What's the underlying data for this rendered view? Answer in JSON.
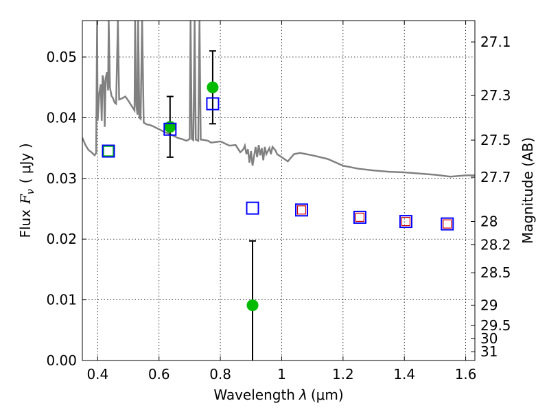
{
  "chart_data": {
    "type": "scatter",
    "xlabel_prefix": "Wavelength",
    "xlabel_symbol": "λ",
    "xlabel_unit": "(μm)",
    "ylabel_left_prefix": "Flux",
    "ylabel_left_symbol": "F",
    "ylabel_left_sub": "ν",
    "ylabel_left_unit": "( μJy )",
    "ylabel_right": "Magnitude (AB)",
    "xlim": [
      0.35,
      1.63
    ],
    "ylim": [
      0.0,
      0.056
    ],
    "x_ticks": [
      0.4,
      0.6,
      0.8,
      1.0,
      1.2,
      1.4,
      1.6
    ],
    "x_tick_labels": [
      "0.4",
      "0.6",
      "0.8",
      "1",
      "1.2",
      "1.4",
      "1.6"
    ],
    "y_ticks": [
      0.0,
      0.01,
      0.02,
      0.03,
      0.04,
      0.05
    ],
    "y_tick_labels": [
      "0.00",
      "0.01",
      "0.02",
      "0.03",
      "0.04",
      "0.05"
    ],
    "right_ticks": [
      {
        "mag": 27.1,
        "label": "27.1"
      },
      {
        "mag": 27.3,
        "label": "27.3"
      },
      {
        "mag": 27.5,
        "label": "27.5"
      },
      {
        "mag": 27.7,
        "label": "27.7"
      },
      {
        "mag": 28.0,
        "label": "28"
      },
      {
        "mag": 28.2,
        "label": "28.2"
      },
      {
        "mag": 28.5,
        "label": "28.5"
      },
      {
        "mag": 29.0,
        "label": "29"
      },
      {
        "mag": 29.5,
        "label": "29.5"
      },
      {
        "mag": 30.0,
        "label": "30"
      },
      {
        "mag": 31.0,
        "label": "31"
      }
    ],
    "grid": true,
    "colors": {
      "observed": "#00bb00",
      "model_box": "#0000ff",
      "model_inner": "#cc0000",
      "spectrum": "#808080",
      "errorbar": "#000000"
    },
    "series": [
      {
        "kind": "observed",
        "points": [
          {
            "x": 0.435,
            "y": 0.0345,
            "open": true
          },
          {
            "x": 0.636,
            "y": 0.0385,
            "yerr_low": 0.0335,
            "yerr_high": 0.0435
          },
          {
            "x": 0.775,
            "y": 0.045,
            "yerr_low": 0.039,
            "yerr_high": 0.051
          },
          {
            "x": 0.905,
            "y": 0.0091,
            "yerr_low": 0.0,
            "yerr_high": 0.0197
          }
        ]
      },
      {
        "kind": "model",
        "points": [
          {
            "x": 0.435,
            "y": 0.0345
          },
          {
            "x": 0.636,
            "y": 0.0381
          },
          {
            "x": 0.775,
            "y": 0.0423
          },
          {
            "x": 0.905,
            "y": 0.0251
          },
          {
            "x": 1.065,
            "y": 0.0248
          },
          {
            "x": 1.255,
            "y": 0.0236
          },
          {
            "x": 1.405,
            "y": 0.0229
          },
          {
            "x": 1.54,
            "y": 0.0225
          }
        ]
      },
      {
        "kind": "model_inner",
        "points": [
          {
            "x": 1.065,
            "y": 0.0248
          },
          {
            "x": 1.255,
            "y": 0.0236
          },
          {
            "x": 1.405,
            "y": 0.0229
          },
          {
            "x": 1.54,
            "y": 0.0225
          }
        ]
      },
      {
        "kind": "spectrum",
        "points": [
          [
            0.35,
            0.0367
          ],
          [
            0.36,
            0.0355
          ],
          [
            0.37,
            0.0347
          ],
          [
            0.38,
            0.0343
          ],
          [
            0.39,
            0.0338
          ],
          [
            0.395,
            0.0342
          ],
          [
            0.398,
            0.056
          ],
          [
            0.4,
            0.0395
          ],
          [
            0.405,
            0.044
          ],
          [
            0.41,
            0.0455
          ],
          [
            0.413,
            0.0395
          ],
          [
            0.416,
            0.047
          ],
          [
            0.42,
            0.046
          ],
          [
            0.423,
            0.0385
          ],
          [
            0.426,
            0.0465
          ],
          [
            0.43,
            0.0475
          ],
          [
            0.434,
            0.0445
          ],
          [
            0.436,
            0.056
          ],
          [
            0.44,
            0.045
          ],
          [
            0.445,
            0.0436
          ],
          [
            0.45,
            0.0432
          ],
          [
            0.455,
            0.0425
          ],
          [
            0.46,
            0.0423
          ],
          [
            0.466,
            0.056
          ],
          [
            0.47,
            0.043
          ],
          [
            0.48,
            0.0432
          ],
          [
            0.49,
            0.0435
          ],
          [
            0.5,
            0.0428
          ],
          [
            0.51,
            0.042
          ],
          [
            0.52,
            0.0412
          ],
          [
            0.522,
            0.056
          ],
          [
            0.526,
            0.042
          ],
          [
            0.53,
            0.0405
          ],
          [
            0.532,
            0.056
          ],
          [
            0.536,
            0.04
          ],
          [
            0.54,
            0.0398
          ],
          [
            0.545,
            0.056
          ],
          [
            0.55,
            0.0392
          ],
          [
            0.56,
            0.0389
          ],
          [
            0.57,
            0.0388
          ],
          [
            0.58,
            0.0386
          ],
          [
            0.6,
            0.0381
          ],
          [
            0.62,
            0.0376
          ],
          [
            0.64,
            0.0372
          ],
          [
            0.66,
            0.0367
          ],
          [
            0.68,
            0.0364
          ],
          [
            0.69,
            0.0362
          ],
          [
            0.7,
            0.0365
          ],
          [
            0.703,
            0.056
          ],
          [
            0.707,
            0.0365
          ],
          [
            0.712,
            0.0363
          ],
          [
            0.716,
            0.056
          ],
          [
            0.72,
            0.0364
          ],
          [
            0.728,
            0.0362
          ],
          [
            0.732,
            0.056
          ],
          [
            0.736,
            0.0364
          ],
          [
            0.75,
            0.0363
          ],
          [
            0.76,
            0.0362
          ],
          [
            0.77,
            0.0359
          ],
          [
            0.8,
            0.0361
          ],
          [
            0.83,
            0.0354
          ],
          [
            0.85,
            0.0355
          ],
          [
            0.865,
            0.0343
          ],
          [
            0.875,
            0.0348
          ],
          [
            0.88,
            0.0354
          ],
          [
            0.885,
            0.034
          ],
          [
            0.89,
            0.0348
          ],
          [
            0.895,
            0.0326
          ],
          [
            0.9,
            0.0345
          ],
          [
            0.905,
            0.0321
          ],
          [
            0.91,
            0.0337
          ],
          [
            0.915,
            0.0352
          ],
          [
            0.92,
            0.0335
          ],
          [
            0.925,
            0.0355
          ],
          [
            0.93,
            0.0338
          ],
          [
            0.935,
            0.035
          ],
          [
            0.94,
            0.033
          ],
          [
            0.945,
            0.0352
          ],
          [
            0.95,
            0.034
          ],
          [
            0.96,
            0.035
          ],
          [
            0.965,
            0.034
          ],
          [
            0.97,
            0.0352
          ],
          [
            0.98,
            0.0346
          ],
          [
            0.985,
            0.034
          ],
          [
            1.0,
            0.0335
          ],
          [
            1.02,
            0.0328
          ],
          [
            1.04,
            0.034
          ],
          [
            1.06,
            0.0342
          ],
          [
            1.08,
            0.034
          ],
          [
            1.1,
            0.0338
          ],
          [
            1.15,
            0.0332
          ],
          [
            1.2,
            0.0321
          ],
          [
            1.25,
            0.0316
          ],
          [
            1.3,
            0.0313
          ],
          [
            1.35,
            0.0311
          ],
          [
            1.4,
            0.031
          ],
          [
            1.45,
            0.0308
          ],
          [
            1.5,
            0.0306
          ],
          [
            1.55,
            0.0303
          ],
          [
            1.6,
            0.0305
          ],
          [
            1.63,
            0.0305
          ]
        ]
      }
    ]
  }
}
